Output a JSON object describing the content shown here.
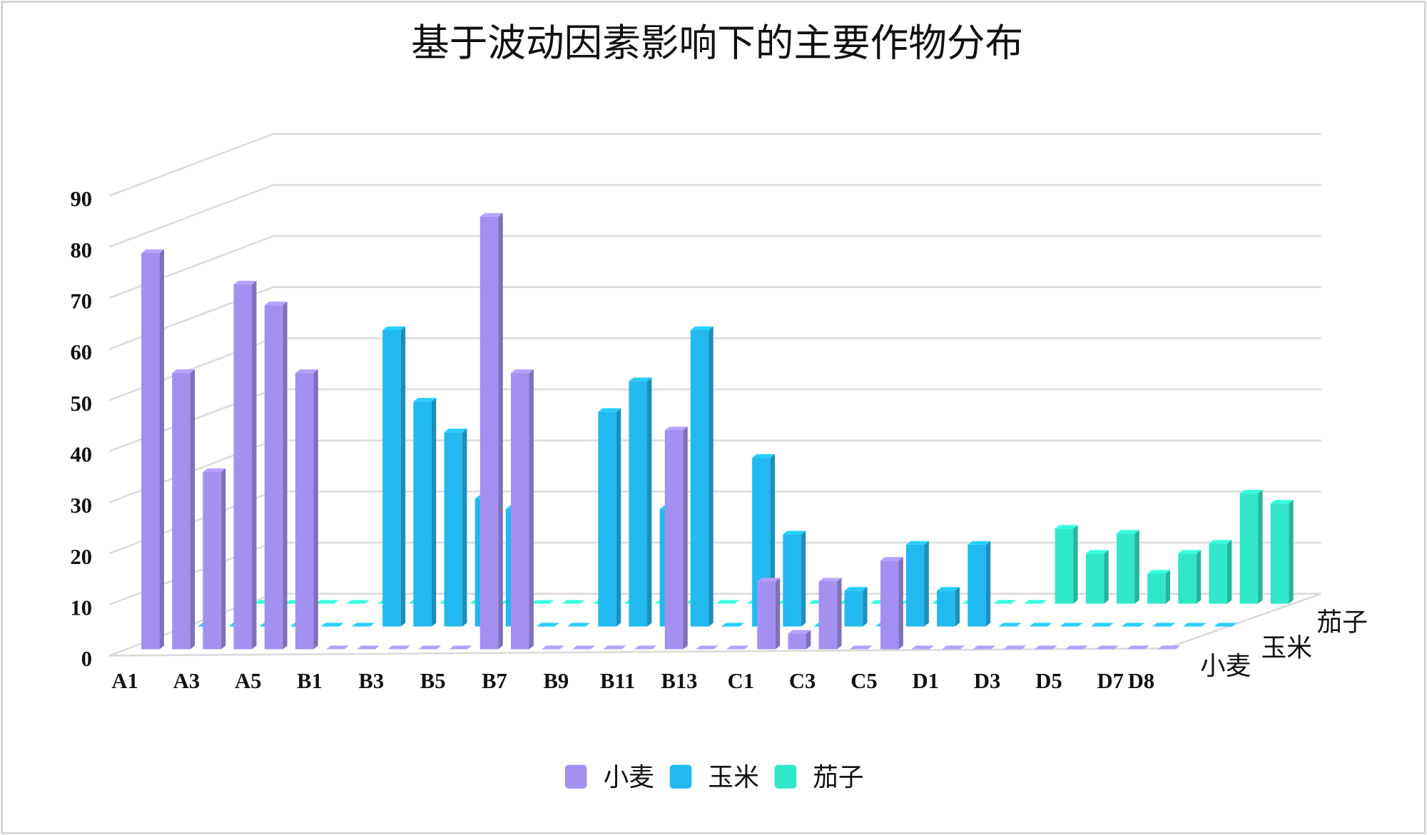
{
  "chart_data": {
    "type": "bar3d",
    "title": "基于波动因素影响下的主要作物分布",
    "categories": [
      "A1",
      null,
      "A3",
      null,
      "A5",
      null,
      "B1",
      null,
      "B3",
      null,
      "B5",
      null,
      "B7",
      null,
      "B9",
      null,
      "B11",
      null,
      "B13",
      null,
      "C1",
      null,
      "C3",
      null,
      "C5",
      null,
      "D1",
      null,
      "D3",
      null,
      "D5",
      null,
      "D7",
      "D8"
    ],
    "series": [
      {
        "name": "小麦",
        "color": "#a390f0",
        "values": [
          76,
          53,
          34,
          70,
          66,
          53,
          0,
          0,
          0,
          0,
          0,
          83,
          53,
          0,
          0,
          0,
          0,
          42,
          0,
          0,
          13,
          3,
          13,
          0,
          17,
          0,
          0,
          0,
          0,
          0,
          0,
          0,
          0,
          0
        ]
      },
      {
        "name": "玉米",
        "color": "#22b8f0",
        "values": [
          0,
          0,
          0,
          0,
          0,
          0,
          58,
          44,
          38,
          25,
          23,
          0,
          0,
          42,
          48,
          23,
          58,
          0,
          33,
          18,
          0,
          7,
          0,
          16,
          7,
          16,
          0,
          0,
          0,
          0,
          0,
          0,
          0,
          0
        ]
      },
      {
        "name": "茄子",
        "color": "#30e8c8",
        "values": [
          0,
          0,
          0,
          0,
          0,
          0,
          0,
          0,
          0,
          0,
          0,
          0,
          0,
          0,
          0,
          0,
          0,
          0,
          0,
          0,
          0,
          0,
          0,
          0,
          0,
          0,
          15,
          10,
          14,
          6,
          10,
          12,
          22,
          20
        ]
      }
    ],
    "ylim": [
      0,
      90
    ],
    "yticks": [
      0,
      10,
      20,
      30,
      40,
      50,
      60,
      70,
      80,
      90
    ],
    "grid": true,
    "legend": "bottom"
  }
}
